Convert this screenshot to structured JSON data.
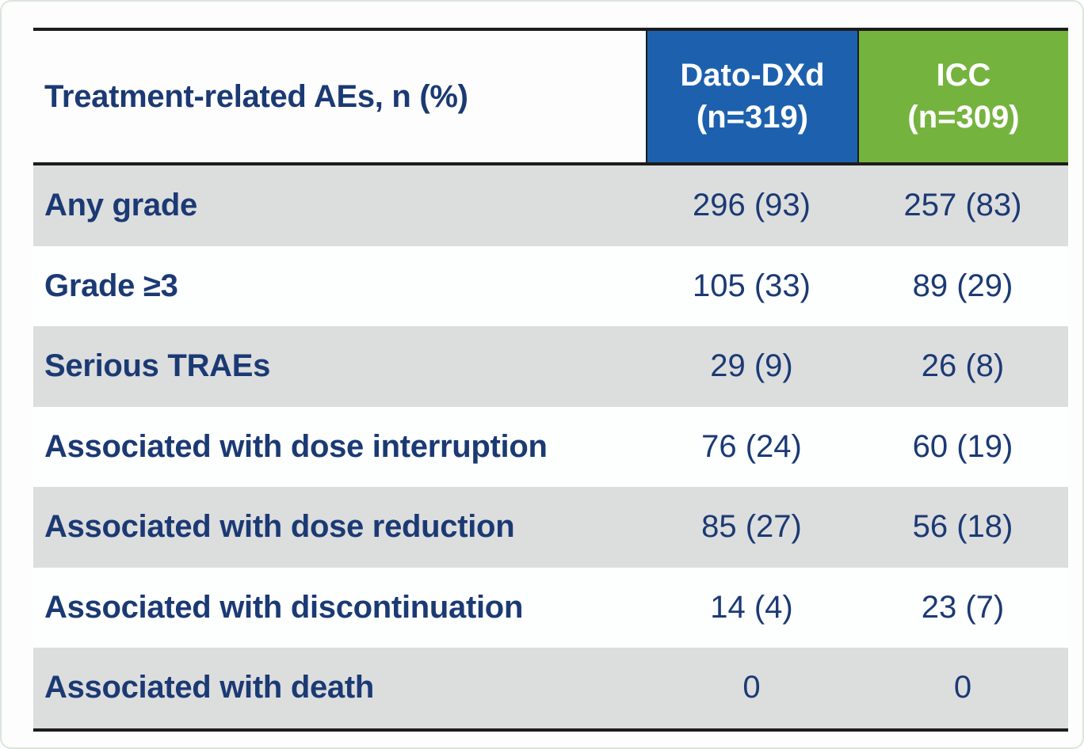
{
  "table": {
    "header": {
      "row_label_column": "Treatment-related AEs, n (%)",
      "columns": [
        {
          "id": "dato",
          "line1": "Dato-DXd",
          "line2": "(n=319)",
          "color": "#1d61ae"
        },
        {
          "id": "icc",
          "line1": "ICC",
          "line2": "(n=309)",
          "color": "#75b33f"
        }
      ]
    },
    "rows": [
      {
        "label": "Any grade",
        "dato": "296 (93)",
        "icc": "257 (83)"
      },
      {
        "label": "Grade ≥3",
        "dato": "105 (33)",
        "icc": "89 (29)"
      },
      {
        "label": "Serious TRAEs",
        "dato": "29 (9)",
        "icc": "26 (8)"
      },
      {
        "label": "Associated with dose interruption",
        "dato": "76 (24)",
        "icc": "60 (19)"
      },
      {
        "label": "Associated with dose reduction",
        "dato": "85 (27)",
        "icc": "56 (18)"
      },
      {
        "label": "Associated with discontinuation",
        "dato": "14 (4)",
        "icc": "23 (7)"
      },
      {
        "label": "Associated with death",
        "dato": "0",
        "icc": "0"
      }
    ],
    "colors": {
      "navy_text": "#1b3a74",
      "stripe_gray": "#dcdddd",
      "border_line": "#1c1c1c",
      "dato_blue": "#1d61ae",
      "icc_green": "#75b33f"
    }
  },
  "chart_data": {
    "type": "table",
    "title": "Treatment-related AEs, n (%)",
    "columns": [
      "Treatment-related AEs, n (%)",
      "Dato-DXd (n=319)",
      "ICC (n=309)"
    ],
    "rows": [
      [
        "Any grade",
        "296 (93)",
        "257 (83)"
      ],
      [
        "Grade ≥3",
        "105 (33)",
        "89 (29)"
      ],
      [
        "Serious TRAEs",
        "29 (9)",
        "26 (8)"
      ],
      [
        "Associated with dose interruption",
        "76 (24)",
        "60 (19)"
      ],
      [
        "Associated with dose reduction",
        "85 (27)",
        "56 (18)"
      ],
      [
        "Associated with discontinuation",
        "14 (4)",
        "23 (7)"
      ],
      [
        "Associated with death",
        "0",
        "0"
      ]
    ]
  }
}
